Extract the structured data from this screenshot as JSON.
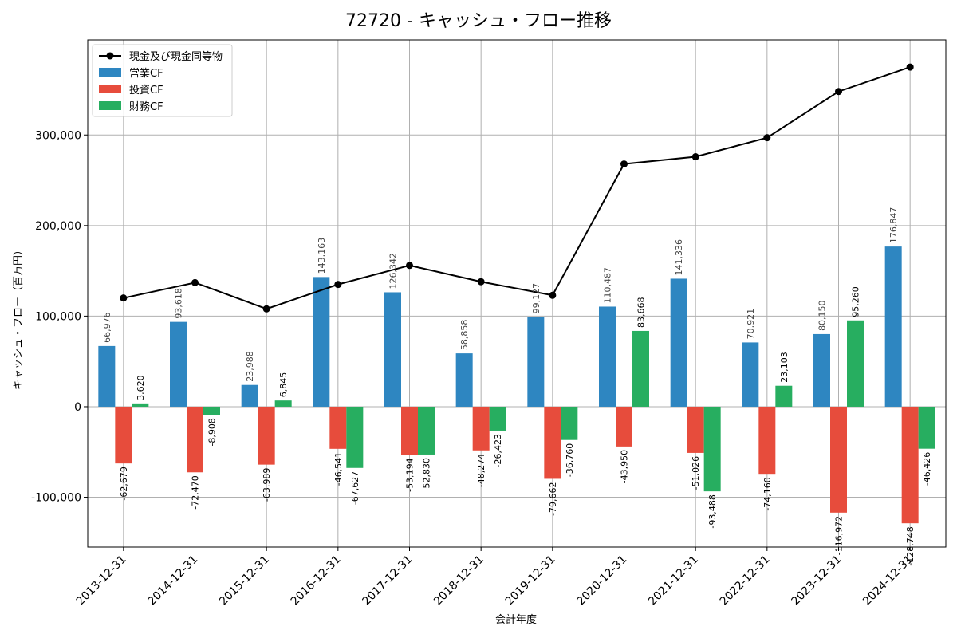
{
  "chart_data": {
    "type": "bar",
    "title": "72720 - キャッシュ・フロー推移",
    "xlabel": "会計年度",
    "ylabel": "キャッシュ・フロー（百万円）",
    "categories": [
      "2013-12-31",
      "2014-12-31",
      "2015-12-31",
      "2016-12-31",
      "2017-12-31",
      "2018-12-31",
      "2019-12-31",
      "2020-12-31",
      "2021-12-31",
      "2022-12-31",
      "2023-12-31",
      "2024-12-31"
    ],
    "ylim": [
      -155000,
      405000
    ],
    "yticks": [
      -100000,
      0,
      100000,
      200000,
      300000
    ],
    "ytick_labels": [
      "-100,000",
      "0",
      "100,000",
      "200,000",
      "300,000"
    ],
    "grid": true,
    "legend_position": "top-left",
    "series": [
      {
        "name": "営業CF",
        "kind": "bar",
        "color": "#2e86c1",
        "labelColor": "#444444",
        "values": [
          66976,
          93618,
          23988,
          143163,
          126342,
          58858,
          99127,
          110487,
          141336,
          70921,
          80150,
          176847
        ],
        "labels": [
          "66,976",
          "93,618",
          "23,988",
          "143,163",
          "126,342",
          "58,858",
          "99,127",
          "110,487",
          "141,336",
          "70,921",
          "80,150",
          "176,847"
        ]
      },
      {
        "name": "投資CF",
        "kind": "bar",
        "color": "#e74c3c",
        "labelColor": "#000000",
        "values": [
          -62679,
          -72470,
          -63989,
          -46541,
          -53194,
          -48274,
          -79662,
          -43950,
          -51026,
          -74160,
          -116972,
          -128748
        ],
        "labels": [
          "-62,679",
          "-72,470",
          "-63,989",
          "-46,541",
          "-53,194",
          "-48,274",
          "-79,662",
          "-43,950",
          "-51,026",
          "-74,160",
          "-116,972",
          "-128,748"
        ]
      },
      {
        "name": "財務CF",
        "kind": "bar",
        "color": "#27ae60",
        "labelColor": "#000000",
        "values": [
          3620,
          -8908,
          6845,
          -67627,
          -52830,
          -26423,
          -36760,
          83668,
          -93488,
          23103,
          95260,
          -46426
        ],
        "labels": [
          "3,620",
          "-8,908",
          "6,845",
          "-67,627",
          "-52,830",
          "-26,423",
          "-36,760",
          "83,668",
          "-93,488",
          "23,103",
          "95,260",
          "-46,426"
        ]
      },
      {
        "name": "現金及び現金同等物",
        "kind": "line",
        "color": "#000000",
        "values": [
          120000,
          137000,
          108000,
          135000,
          156000,
          138000,
          123000,
          268000,
          276000,
          297000,
          348000,
          375000
        ]
      }
    ]
  }
}
